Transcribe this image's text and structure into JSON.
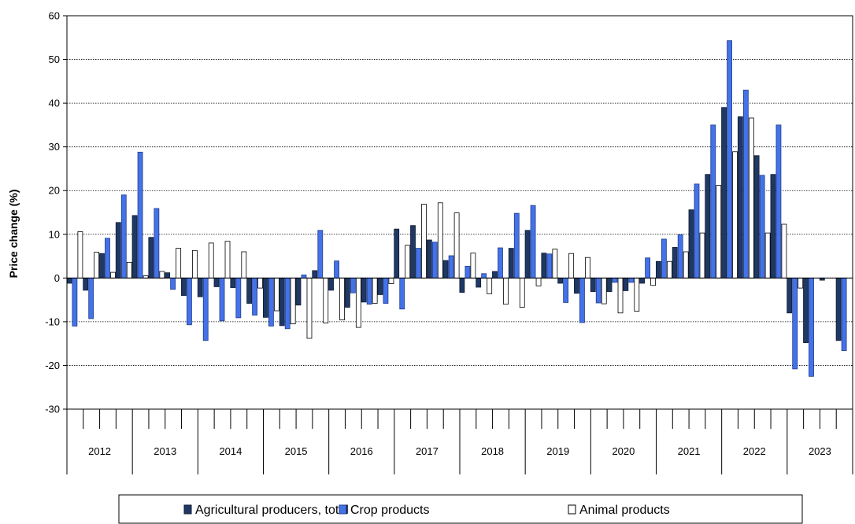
{
  "chart_data": {
    "type": "bar",
    "title": "",
    "xlabel": "",
    "ylabel": "Price change (%)",
    "ylim": [
      -30,
      60
    ],
    "yticks": [
      -30,
      -20,
      -10,
      0,
      10,
      20,
      30,
      40,
      50,
      60
    ],
    "grid": "horizontal dotted",
    "legend_position": "bottom",
    "colors": {
      "agricultural": "#1f3864",
      "crop": "#4472e8",
      "animal": "#ffffff"
    },
    "years": [
      "2012",
      "2013",
      "2014",
      "2015",
      "2016",
      "2017",
      "2018",
      "2019",
      "2020",
      "2021",
      "2022",
      "2023"
    ],
    "categories": [
      "2012-Q1",
      "2012-Q2",
      "2012-Q3",
      "2012-Q4",
      "2013-Q1",
      "2013-Q2",
      "2013-Q3",
      "2013-Q4",
      "2014-Q1",
      "2014-Q2",
      "2014-Q3",
      "2014-Q4",
      "2015-Q1",
      "2015-Q2",
      "2015-Q3",
      "2015-Q4",
      "2016-Q1",
      "2016-Q2",
      "2016-Q3",
      "2016-Q4",
      "2017-Q1",
      "2017-Q2",
      "2017-Q3",
      "2017-Q4",
      "2018-Q1",
      "2018-Q2",
      "2018-Q3",
      "2018-Q4",
      "2019-Q1",
      "2019-Q2",
      "2019-Q3",
      "2019-Q4",
      "2020-Q1",
      "2020-Q2",
      "2020-Q3",
      "2020-Q4",
      "2021-Q1",
      "2021-Q2",
      "2021-Q3",
      "2021-Q4",
      "2022-Q1",
      "2022-Q2",
      "2022-Q3",
      "2022-Q4",
      "2023-Q1",
      "2023-Q2",
      "2023-Q3",
      "2023-Q4"
    ],
    "series": [
      {
        "name": "Agricultural producers, total",
        "values": [
          -1.2,
          -2.8,
          5.6,
          12.7,
          14.3,
          9.3,
          1.2,
          -4.0,
          -4.3,
          -2.0,
          -2.2,
          -5.8,
          -9.0,
          -10.9,
          -6.2,
          1.7,
          -2.8,
          -6.7,
          -5.5,
          -3.8,
          11.2,
          12.0,
          8.7,
          4.0,
          -3.3,
          -2.1,
          1.5,
          6.8,
          10.9,
          5.7,
          -1.2,
          -3.5,
          -3.1,
          -3.1,
          -2.9,
          -1.2,
          3.8,
          7.0,
          15.6,
          23.7,
          39.0,
          36.9,
          28.0,
          23.7,
          -8.0,
          -14.8,
          -0.5,
          -14.3
        ]
      },
      {
        "name": "Crop products",
        "values": [
          -11.0,
          -9.3,
          9.1,
          19.0,
          28.8,
          15.9,
          -2.6,
          -10.7,
          -14.3,
          -9.8,
          -9.1,
          -8.5,
          -11.0,
          -11.6,
          0.7,
          10.9,
          3.9,
          -3.4,
          -6.0,
          -5.8,
          -7.1,
          6.8,
          8.2,
          5.1,
          2.7,
          1.0,
          6.9,
          14.8,
          16.6,
          5.5,
          -5.6,
          -10.2,
          -5.7,
          -1.0,
          -1.0,
          4.6,
          8.9,
          9.9,
          21.5,
          35.0,
          54.3,
          43.0,
          23.5,
          35.0,
          -20.8,
          -22.5,
          0.0,
          -16.6
        ]
      },
      {
        "name": "Animal products",
        "values": [
          10.6,
          5.9,
          1.3,
          3.6,
          0.5,
          1.5,
          6.8,
          6.3,
          8.0,
          8.4,
          6.0,
          -2.3,
          -7.5,
          -10.5,
          -13.8,
          -10.3,
          -9.6,
          -11.3,
          -5.8,
          -1.3,
          7.5,
          16.9,
          17.2,
          14.9,
          5.7,
          -3.6,
          -6.0,
          -6.7,
          -1.8,
          6.6,
          5.6,
          4.7,
          -5.9,
          -8.0,
          -7.6,
          -1.7,
          3.8,
          6.0,
          10.3,
          21.2,
          28.9,
          36.6,
          10.3,
          12.3,
          -2.3,
          0.0,
          0.0,
          0.0
        ]
      }
    ]
  }
}
